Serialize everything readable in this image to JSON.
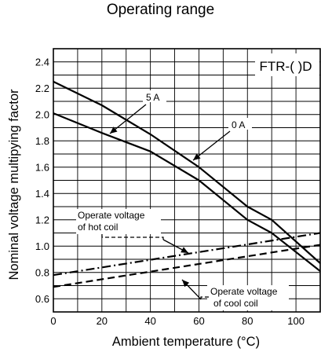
{
  "chart_data": {
    "type": "line",
    "title": "Operating range",
    "xlabel": "Ambient temperature (°C)",
    "ylabel": "Nominal voltage multipying factor",
    "xlim": [
      0,
      110
    ],
    "ylim": [
      0.5,
      2.5
    ],
    "xticks": [
      0,
      20,
      40,
      60,
      80,
      100
    ],
    "yticks": [
      0.6,
      0.8,
      1.0,
      1.2,
      1.4,
      1.6,
      1.8,
      2.0,
      2.2,
      2.4
    ],
    "grid": true,
    "series": [
      {
        "name": "5 A",
        "style": "solid",
        "points": [
          [
            0,
            2.25
          ],
          [
            20,
            2.07
          ],
          [
            40,
            1.85
          ],
          [
            60,
            1.6
          ],
          [
            80,
            1.3
          ],
          [
            90,
            1.2
          ],
          [
            110,
            0.87
          ]
        ]
      },
      {
        "name": "0 A",
        "style": "solid",
        "points": [
          [
            0,
            2.01
          ],
          [
            20,
            1.86
          ],
          [
            40,
            1.72
          ],
          [
            60,
            1.5
          ],
          [
            80,
            1.2
          ],
          [
            90,
            1.1
          ],
          [
            110,
            0.81
          ]
        ]
      },
      {
        "name": "Operate voltage of hot coil",
        "style": "dashdot",
        "points": [
          [
            0,
            0.78
          ],
          [
            110,
            1.1
          ]
        ]
      },
      {
        "name": "Operate voltage of cool coil",
        "style": "dashed",
        "points": [
          [
            0,
            0.69
          ],
          [
            110,
            1.01
          ]
        ]
      }
    ],
    "annotations": {
      "model": "FTR-( )D",
      "label_5a": "5 A",
      "label_0a": "0 A",
      "hot_line1": "Operate voltage",
      "hot_line2": "of hot coil",
      "cool_line1": "Operate voltage",
      "cool_line2": "of cool coil"
    }
  }
}
